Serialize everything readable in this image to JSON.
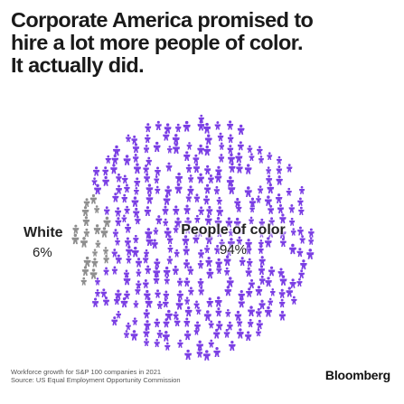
{
  "headline": {
    "line1": "Corporate America promised to",
    "line2": "hire a lot more people of color.",
    "line3": "It actually did."
  },
  "chart_data": {
    "type": "pictogram",
    "subtitle": "Workforce growth for S&P 100 companies in 2021",
    "source": "Source: US Equal Employment Opportunity Commission",
    "series": [
      {
        "name": "White",
        "value": 6,
        "value_label": "6%",
        "color": "#8e8e8e",
        "icon": "person-icon"
      },
      {
        "name": "People of color",
        "value": 94,
        "value_label": "94%",
        "color": "#7b3fe4",
        "icon": "person-icon"
      }
    ],
    "unit": "%"
  },
  "brand": "Bloomberg"
}
